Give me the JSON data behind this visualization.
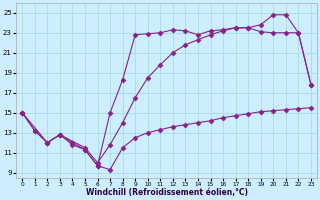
{
  "line1_x": [
    0,
    1,
    2,
    3,
    4,
    5,
    6,
    7,
    8,
    9,
    10,
    11,
    12,
    13,
    14,
    15,
    16,
    17,
    18,
    19,
    20,
    21,
    22,
    23
  ],
  "line1_y": [
    15.0,
    13.2,
    12.0,
    12.8,
    12.0,
    11.3,
    9.7,
    9.3,
    11.5,
    12.5,
    13.0,
    13.3,
    13.6,
    13.8,
    14.0,
    14.2,
    14.5,
    14.7,
    14.9,
    15.1,
    15.2,
    15.3,
    15.4,
    15.5
  ],
  "line2_x": [
    0,
    1,
    2,
    3,
    4,
    5,
    6,
    7,
    8,
    9,
    10,
    11,
    12,
    13,
    14,
    15,
    16,
    17,
    18,
    19,
    20,
    21,
    22,
    23
  ],
  "line2_y": [
    15.0,
    13.2,
    12.0,
    12.8,
    11.8,
    11.3,
    9.7,
    15.0,
    18.3,
    22.8,
    22.9,
    23.0,
    23.3,
    23.2,
    22.8,
    23.2,
    23.3,
    23.5,
    23.5,
    23.1,
    23.0,
    23.0,
    23.0,
    17.8
  ],
  "line3_x": [
    0,
    2,
    3,
    5,
    6,
    7,
    8,
    9,
    10,
    11,
    12,
    13,
    14,
    15,
    16,
    17,
    18,
    19,
    20,
    21,
    22,
    23
  ],
  "line3_y": [
    15.0,
    12.0,
    12.8,
    11.5,
    10.0,
    11.8,
    14.0,
    16.5,
    18.5,
    19.8,
    21.0,
    21.8,
    22.3,
    22.8,
    23.2,
    23.5,
    23.5,
    23.8,
    24.8,
    24.8,
    23.0,
    17.8
  ],
  "color": "#882288",
  "background_color": "#cceeff",
  "grid_color": "#aadddd",
  "xlabel": "Windchill (Refroidissement éolien,°C)",
  "ylim": [
    8.5,
    26.0
  ],
  "xlim": [
    -0.5,
    23.5
  ],
  "yticks": [
    9,
    11,
    13,
    15,
    17,
    19,
    21,
    23,
    25
  ],
  "xticks": [
    0,
    1,
    2,
    3,
    4,
    5,
    6,
    7,
    8,
    9,
    10,
    11,
    12,
    13,
    14,
    15,
    16,
    17,
    18,
    19,
    20,
    21,
    22,
    23
  ]
}
